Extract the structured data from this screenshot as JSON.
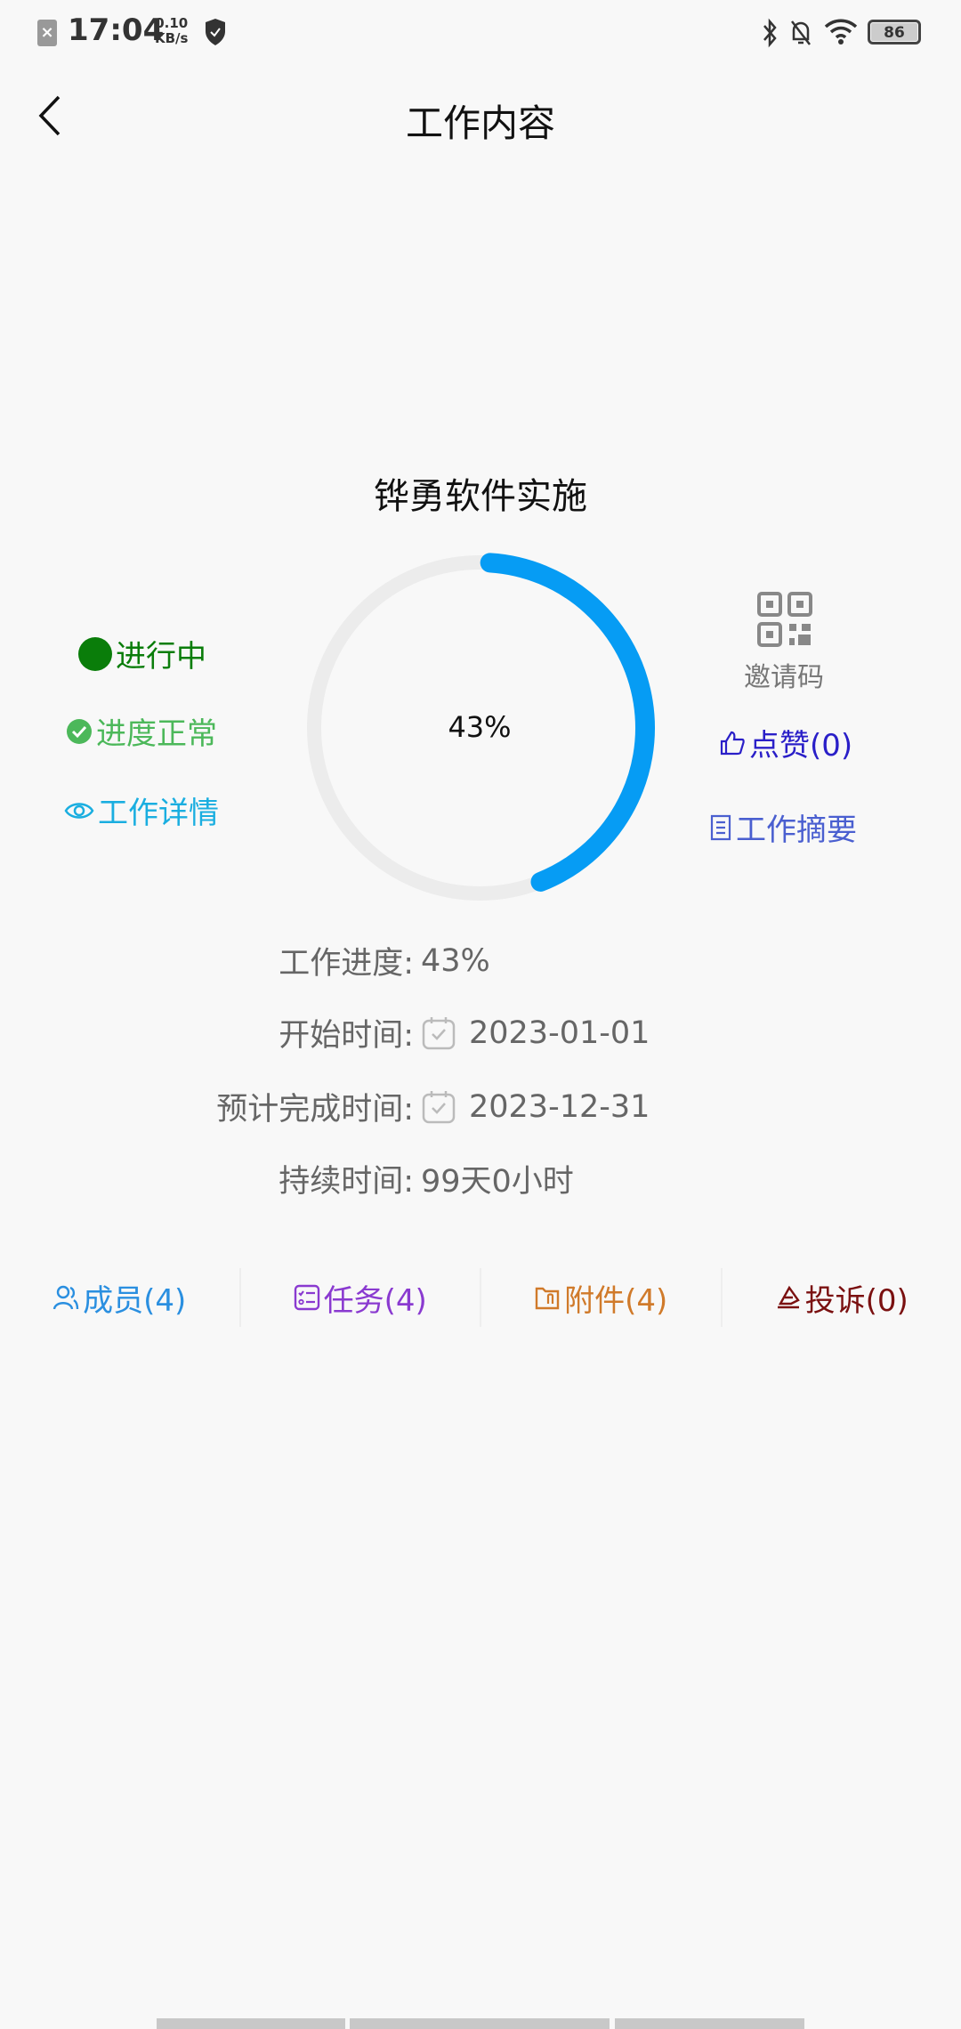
{
  "status_bar": {
    "time": "17:04",
    "speed_value": "0.10",
    "speed_unit": "KB/s",
    "battery": "86"
  },
  "header": {
    "title": "工作内容"
  },
  "project": {
    "name": "铧勇软件实施",
    "progress_percent": 43,
    "progress_label": "43%"
  },
  "left": {
    "state": "进行中",
    "state_color": "#0a7d0a",
    "schedule": "进度正常",
    "schedule_color": "#4cb85a",
    "details": "工作详情",
    "details_color": "#1aaee0"
  },
  "right": {
    "invite": "邀请码",
    "like": "点赞(0)",
    "like_color": "#2a1fc8",
    "summary": "工作摘要",
    "summary_color": "#4a5fd0"
  },
  "info": {
    "progress_label": "工作进度:",
    "progress_value": "43%",
    "start_label": "开始时间:",
    "start_value": "2023-01-01",
    "end_label": "预计完成时间:",
    "end_value": "2023-12-31",
    "duration_label": "持续时间:",
    "duration_value": "99天0小时"
  },
  "tabs": [
    {
      "label": "成员(4)",
      "color": "#2a8fe0"
    },
    {
      "label": "任务(4)",
      "color": "#8a3ad0"
    },
    {
      "label": "附件(4)",
      "color": "#d07a2a"
    },
    {
      "label": "投诉(0)",
      "color": "#7a1010"
    }
  ],
  "colors": {
    "ring": "#069cf4",
    "ring_track": "#ececec"
  }
}
